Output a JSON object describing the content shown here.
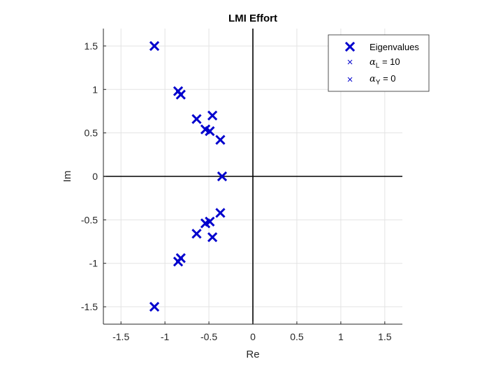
{
  "chart_data": {
    "type": "scatter",
    "title": "LMI Effort",
    "xlabel": "Re",
    "ylabel": "Im",
    "xlim": [
      -1.7,
      1.7
    ],
    "ylim": [
      -1.7,
      1.7
    ],
    "xticks": [
      -1.5,
      -1,
      -0.5,
      0,
      0.5,
      1,
      1.5
    ],
    "xtick_labels": [
      "-1.5",
      "-1",
      "-0.5",
      "0",
      "0.5",
      "1",
      "1.5"
    ],
    "yticks": [
      -1.5,
      -1,
      -0.5,
      0,
      0.5,
      1,
      1.5
    ],
    "ytick_labels": [
      "-1.5",
      "-1",
      "-0.5",
      "0",
      "0.5",
      "1",
      "1.5"
    ],
    "grid": true,
    "axis_lines_through_origin": true,
    "legend_location": "top-right",
    "legend": [
      {
        "label": "Eigenvalues",
        "marker": "x-bold",
        "color": "#0000cd"
      },
      {
        "label_symbol": "α",
        "label_subscript": "L",
        "label_rest": " = 10",
        "marker": "x-thin",
        "color": "#0000cd"
      },
      {
        "label_symbol": "α",
        "label_subscript": "Y",
        "label_rest": " = 0",
        "marker": "x-thin",
        "color": "#0000cd"
      }
    ],
    "series": [
      {
        "name": "Eigenvalues",
        "marker": "x",
        "color": "#0000cd",
        "points": [
          {
            "x": -1.12,
            "y": 1.5
          },
          {
            "x": -1.12,
            "y": -1.5
          },
          {
            "x": -0.85,
            "y": 0.98
          },
          {
            "x": -0.82,
            "y": 0.94
          },
          {
            "x": -0.85,
            "y": -0.98
          },
          {
            "x": -0.82,
            "y": -0.94
          },
          {
            "x": -0.64,
            "y": 0.66
          },
          {
            "x": -0.64,
            "y": -0.66
          },
          {
            "x": -0.54,
            "y": 0.54
          },
          {
            "x": -0.49,
            "y": 0.52
          },
          {
            "x": -0.54,
            "y": -0.54
          },
          {
            "x": -0.49,
            "y": -0.52
          },
          {
            "x": -0.46,
            "y": 0.7
          },
          {
            "x": -0.46,
            "y": -0.7
          },
          {
            "x": -0.37,
            "y": 0.42
          },
          {
            "x": -0.37,
            "y": -0.42
          },
          {
            "x": -0.35,
            "y": 0.0
          }
        ]
      }
    ]
  }
}
